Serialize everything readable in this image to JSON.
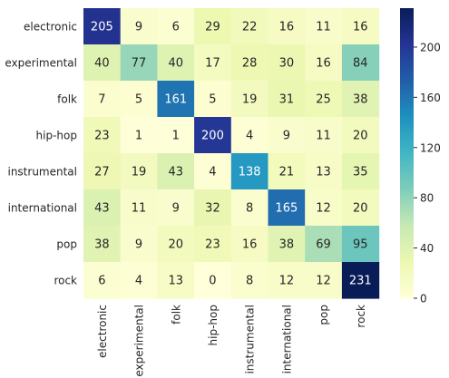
{
  "chart_data": {
    "type": "heatmap",
    "title": "",
    "xlabel": "",
    "ylabel": "",
    "rows": [
      "electronic",
      "experimental",
      "folk",
      "hip-hop",
      "instrumental",
      "international",
      "pop",
      "rock"
    ],
    "columns": [
      "electronic",
      "experimental",
      "folk",
      "hip-hop",
      "instrumental",
      "international",
      "pop",
      "rock"
    ],
    "values": [
      [
        205,
        9,
        6,
        29,
        22,
        16,
        11,
        16
      ],
      [
        40,
        77,
        40,
        17,
        28,
        30,
        16,
        84
      ],
      [
        7,
        5,
        161,
        5,
        19,
        31,
        25,
        38
      ],
      [
        23,
        1,
        1,
        200,
        4,
        9,
        11,
        20
      ],
      [
        27,
        19,
        43,
        4,
        138,
        21,
        13,
        35
      ],
      [
        43,
        11,
        9,
        32,
        8,
        165,
        12,
        20
      ],
      [
        38,
        9,
        20,
        23,
        16,
        38,
        69,
        95
      ],
      [
        6,
        4,
        13,
        0,
        8,
        12,
        12,
        231
      ]
    ],
    "colormap": "YlGnBu",
    "vmin": 0,
    "vmax": 231,
    "colorbar_ticks": [
      0,
      40,
      80,
      120,
      160,
      200
    ],
    "annotated": true,
    "grid": false
  }
}
